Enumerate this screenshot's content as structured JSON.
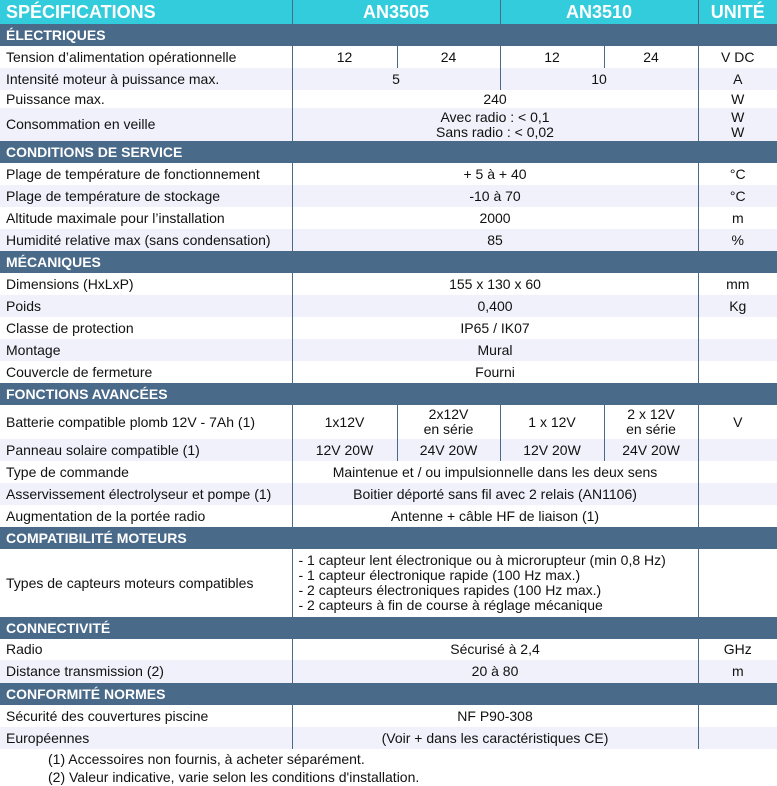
{
  "header": {
    "title": "SPÉCIFICATIONS",
    "col1": "AN3505",
    "col2": "AN3510",
    "unit": "UNITÉ"
  },
  "colors": {
    "header": "#33ccdd",
    "section": "#4a6a8a",
    "alt_row": "#f0f1fa"
  },
  "sections": [
    {
      "title": "ÉLECTRIQUES",
      "rows": [
        {
          "label": "Tension d’alimentation opérationnelle",
          "cells": [
            "12",
            "24",
            "12",
            "24"
          ],
          "unit": "V DC"
        },
        {
          "label": "Intensité moteur à puissance max.",
          "pair": [
            "5",
            "10"
          ],
          "unit": "A"
        },
        {
          "label": "Puissance max.",
          "value": "240",
          "unit": "W"
        },
        {
          "label": "Consommation en veille",
          "value": "Avec radio : < 0,1\nSans radio : < 0,02",
          "unit": "W\nW"
        }
      ]
    },
    {
      "title": "CONDITIONS DE SERVICE",
      "rows": [
        {
          "label": "Plage de température de fonctionnement",
          "value": "+ 5 à + 40",
          "unit": "°C"
        },
        {
          "label": "Plage de température de stockage",
          "value": "-10 à 70",
          "unit": "°C"
        },
        {
          "label": "Altitude maximale pour l’installation",
          "value": "2000",
          "unit": "m"
        },
        {
          "label": "Humidité relative max (sans condensation)",
          "value": "85",
          "unit": "%"
        }
      ]
    },
    {
      "title": "MÉCANIQUES",
      "rows": [
        {
          "label": "Dimensions (HxLxP)",
          "value": "155 x 130 x 60",
          "unit": "mm"
        },
        {
          "label": "Poids",
          "value": "0,400",
          "unit": "Kg"
        },
        {
          "label": "Classe de protection",
          "value": "IP65 / IK07",
          "unit": ""
        },
        {
          "label": "Montage",
          "value": "Mural",
          "unit": ""
        },
        {
          "label": "Couvercle de fermeture",
          "value": "Fourni",
          "unit": ""
        }
      ]
    },
    {
      "title": "FONCTIONS AVANCÉES",
      "rows": [
        {
          "label": "Batterie compatible plomb 12V - 7Ah (1)",
          "cells": [
            "1x12V",
            "2x12V\nen série",
            "1 x 12V",
            "2 x 12V\nen série"
          ],
          "unit": "V"
        },
        {
          "label": "Panneau solaire compatible (1)",
          "cells": [
            "12V 20W",
            "24V 20W",
            "12V 20W",
            "24V 20W"
          ],
          "unit": ""
        },
        {
          "label": "Type de commande",
          "value": "Maintenue et / ou impulsionnelle dans les deux sens",
          "unit": ""
        },
        {
          "label": "Asservissement électrolyseur et pompe (1)",
          "value": "Boitier déporté sans fil avec 2 relais (AN1106)",
          "unit": ""
        },
        {
          "label": "Augmentation de la portée radio",
          "value": "Antenne + câble HF de liaison (1)",
          "unit": ""
        }
      ]
    },
    {
      "title": "COMPATIBILITÉ MOTEURS",
      "rows": [
        {
          "label": "Types de capteurs moteurs compatibles",
          "list": [
            "- 1 capteur lent électronique ou à microrupteur (min 0,8 Hz)",
            "- 1 capteur électronique rapide (100 Hz max.)",
            "- 2 capteurs électroniques rapides (100 Hz max.)",
            "- 2 capteurs à fin de course à réglage mécanique"
          ],
          "unit": ""
        }
      ]
    },
    {
      "title": "CONNECTIVITÉ",
      "rows": [
        {
          "label": "Radio",
          "value": "Sécurisé à 2,4",
          "unit": "GHz"
        },
        {
          "label": "Distance transmission (2)",
          "value": "20 à 80",
          "unit": "m"
        }
      ]
    },
    {
      "title": "CONFORMITÉ NORMES",
      "rows": [
        {
          "label": "Sécurité des couvertures piscine",
          "value": "NF P90-308",
          "unit": ""
        },
        {
          "label": "Européennes",
          "value": "(Voir + dans les caractéristiques CE)",
          "unit": ""
        }
      ]
    }
  ],
  "footnotes": [
    "(1) Accessoires non fournis, à acheter séparément.",
    "(2) Valeur indicative, varie selon les conditions d'installation."
  ]
}
